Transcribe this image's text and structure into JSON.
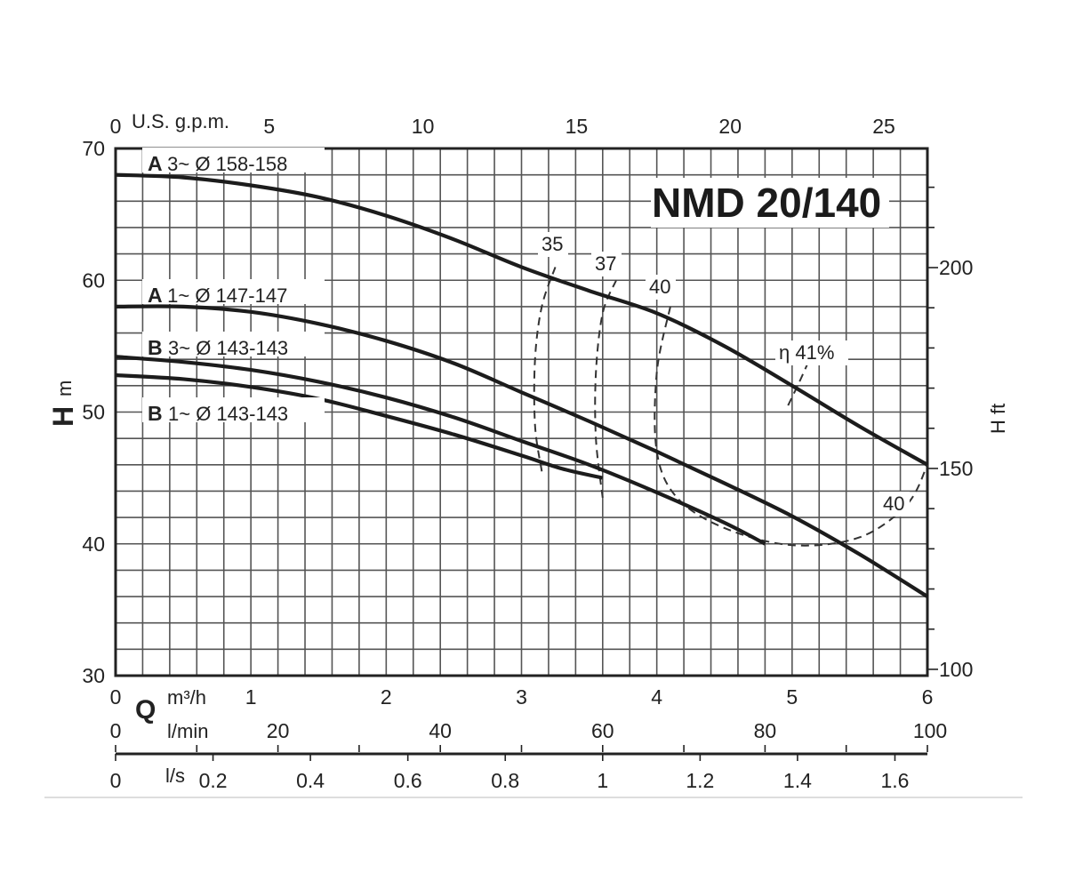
{
  "chart_data": {
    "type": "line",
    "title": "NMD 20/140",
    "x_axes": {
      "m3h": {
        "label_q": "Q",
        "label": "m³/h",
        "ticks": [
          0,
          1,
          2,
          3,
          4,
          5,
          6
        ],
        "range": [
          0,
          6
        ]
      },
      "usgpm": {
        "label": "U.S. g.p.m.",
        "ticks": [
          0,
          5,
          10,
          15,
          20,
          25
        ]
      },
      "lmin": {
        "label": "l/min",
        "ticks": [
          0,
          20,
          40,
          60,
          80,
          100
        ]
      },
      "ls": {
        "label": "l/s",
        "ticks": [
          "0",
          "0.2",
          "0.4",
          "0.6",
          "0.8",
          "1",
          "1.2",
          "1.4",
          "1.6"
        ]
      }
    },
    "y_axes": {
      "left": {
        "label": "H",
        "unit": "m",
        "ticks": [
          30,
          40,
          50,
          60,
          70
        ],
        "range": [
          30,
          70
        ]
      },
      "right": {
        "label": "H ft",
        "ticks": [
          100,
          150,
          200
        ]
      }
    },
    "series": [
      {
        "name_bold": "A",
        "name": "3~ Ø 158-158",
        "x": [
          0,
          0.5,
          1,
          1.5,
          2,
          2.5,
          3,
          3.5,
          4,
          4.5,
          5,
          5.5,
          6
        ],
        "y": [
          68,
          67.8,
          67.2,
          66.3,
          64.9,
          63.1,
          61,
          59.2,
          57.5,
          55,
          52,
          48.9,
          46
        ]
      },
      {
        "name_bold": "A",
        "name": "1~ Ø 147-147",
        "x": [
          0,
          0.5,
          1,
          1.5,
          2,
          2.5,
          3,
          3.5,
          4,
          4.5,
          5,
          5.5,
          6
        ],
        "y": [
          58,
          58,
          57.6,
          56.7,
          55.4,
          53.7,
          51.5,
          49.3,
          47,
          44.6,
          42.1,
          39.2,
          36
        ]
      },
      {
        "name_bold": "B",
        "name": "3~ Ø 143-143",
        "x": [
          0,
          0.5,
          1,
          1.5,
          2,
          2.5,
          3,
          3.5,
          4,
          4.5,
          4.8
        ],
        "y": [
          54.2,
          53.8,
          53.2,
          52.3,
          51.1,
          49.6,
          47.8,
          46,
          43.9,
          41.6,
          40
        ]
      },
      {
        "name_bold": "B",
        "name": "1~ Ø 143-143",
        "x": [
          0,
          0.5,
          1,
          1.5,
          2,
          2.5,
          3,
          3.3,
          3.6
        ],
        "y": [
          52.8,
          52.5,
          51.9,
          51,
          49.7,
          48.3,
          46.7,
          45.7,
          45
        ]
      }
    ],
    "efficiency": {
      "label_35": "35",
      "label_37": "37",
      "label_40": "40",
      "label_40_right": "40",
      "label_41": "η 41%",
      "curves": [
        {
          "name": "35",
          "x": [
            3.15,
            3.1,
            3.1,
            3.15,
            3.25
          ],
          "y": [
            45.5,
            49,
            54,
            58,
            61
          ]
        },
        {
          "name": "37",
          "x": [
            3.6,
            3.55,
            3.55,
            3.6,
            3.7
          ],
          "y": [
            43.5,
            48,
            53,
            57.5,
            60
          ]
        },
        {
          "name": "40",
          "x": [
            4.1,
            4.0,
            4.0,
            4.15,
            4.5,
            5.0,
            5.5,
            5.85,
            6.0
          ],
          "y": [
            58,
            53,
            47,
            43.5,
            41.2,
            39.9,
            40.5,
            43,
            46
          ]
        },
        {
          "name": "41",
          "x": [
            4.97,
            5.05,
            5.12
          ],
          "y": [
            50.5,
            52.2,
            53.8
          ]
        }
      ]
    },
    "grid": true,
    "legend": "inline"
  }
}
